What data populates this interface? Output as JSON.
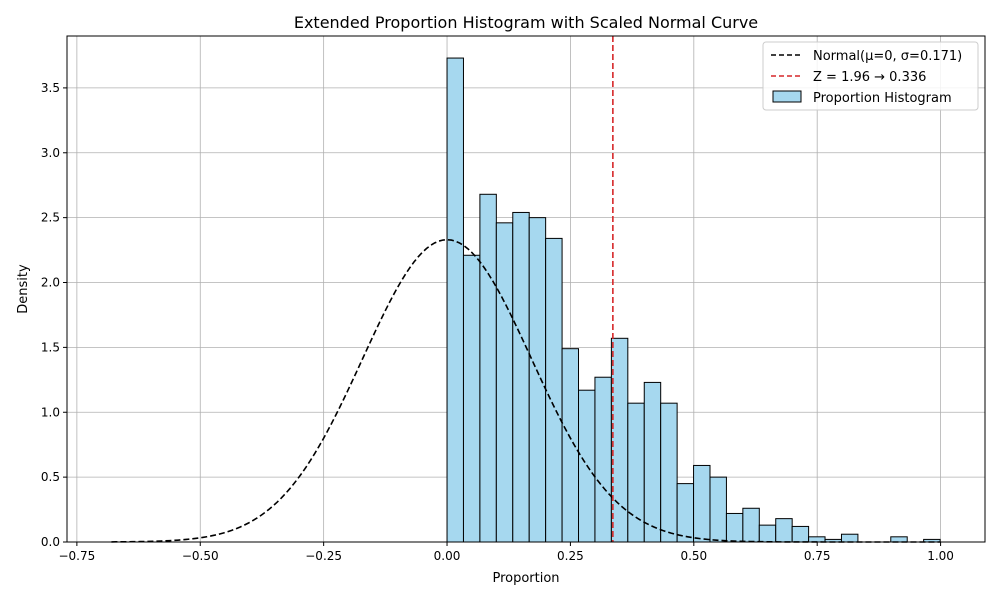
{
  "chart_data": {
    "type": "bar",
    "title": "Extended Proportion Histogram with Scaled Normal Curve",
    "xlabel": "Proportion",
    "ylabel": "Density",
    "xlim": [
      -0.77,
      1.09
    ],
    "ylim": [
      0,
      3.9
    ],
    "xticks": [
      -0.75,
      -0.5,
      -0.25,
      0.0,
      0.25,
      0.5,
      0.75,
      1.0
    ],
    "xtick_labels": [
      "−0.75",
      "−0.50",
      "−0.25",
      "0.00",
      "0.25",
      "0.50",
      "0.75",
      "1.00"
    ],
    "yticks": [
      0.0,
      0.5,
      1.0,
      1.5,
      2.0,
      2.5,
      3.0,
      3.5
    ],
    "ytick_labels": [
      "0.0",
      "0.5",
      "1.0",
      "1.5",
      "2.0",
      "2.5",
      "3.0",
      "3.5"
    ],
    "grid": true,
    "legend_position": "top-right",
    "histogram": {
      "name": "Proportion Histogram",
      "color": "#a6d8ef",
      "edge_color": "#000000",
      "bin_width": 0.0333,
      "bin_start": 0.0,
      "values": [
        3.73,
        2.21,
        2.68,
        2.46,
        2.54,
        2.5,
        2.34,
        1.49,
        1.17,
        1.27,
        1.57,
        1.07,
        1.23,
        1.07,
        0.45,
        0.59,
        0.5,
        0.22,
        0.26,
        0.13,
        0.18,
        0.12,
        0.04,
        0.02,
        0.06,
        0.0,
        0.0,
        0.04,
        0.0,
        0.02
      ]
    },
    "normal_curve": {
      "name": "Normal(μ=0, σ=0.171)",
      "mu": 0,
      "sigma": 0.171,
      "peak": 2.33,
      "x_range": [
        -0.68,
        1.0
      ],
      "color": "#000000",
      "style": "dashed"
    },
    "vline": {
      "name": "Z = 1.96 → 0.336",
      "x": 0.336,
      "color": "#d62728",
      "style": "dashed"
    }
  }
}
